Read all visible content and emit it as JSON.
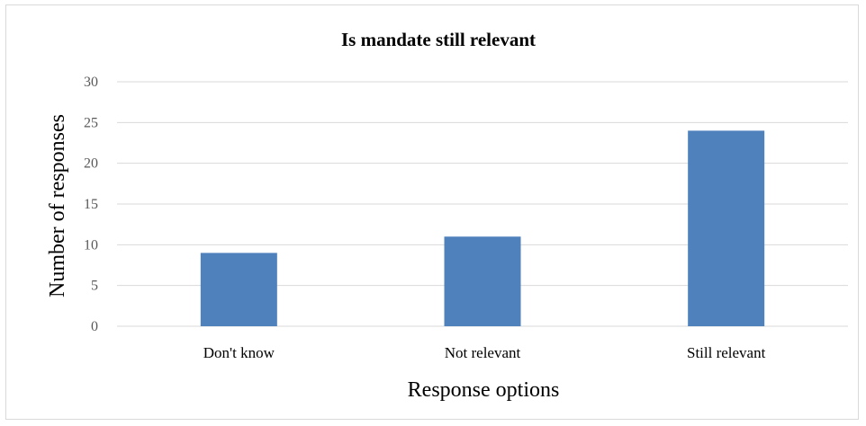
{
  "chart_data": {
    "type": "bar",
    "title": "Is mandate still relevant",
    "xlabel": "Response options",
    "ylabel": "Number of responses",
    "categories": [
      "Don't know",
      "Not relevant",
      "Still relevant"
    ],
    "values": [
      9,
      11,
      24
    ],
    "ylim": [
      0,
      30
    ],
    "yticks": [
      0,
      5,
      10,
      15,
      20,
      25,
      30
    ],
    "grid": true,
    "legend": "none",
    "bar_color": "#4f81bd",
    "grid_color": "#d9d9d9"
  }
}
